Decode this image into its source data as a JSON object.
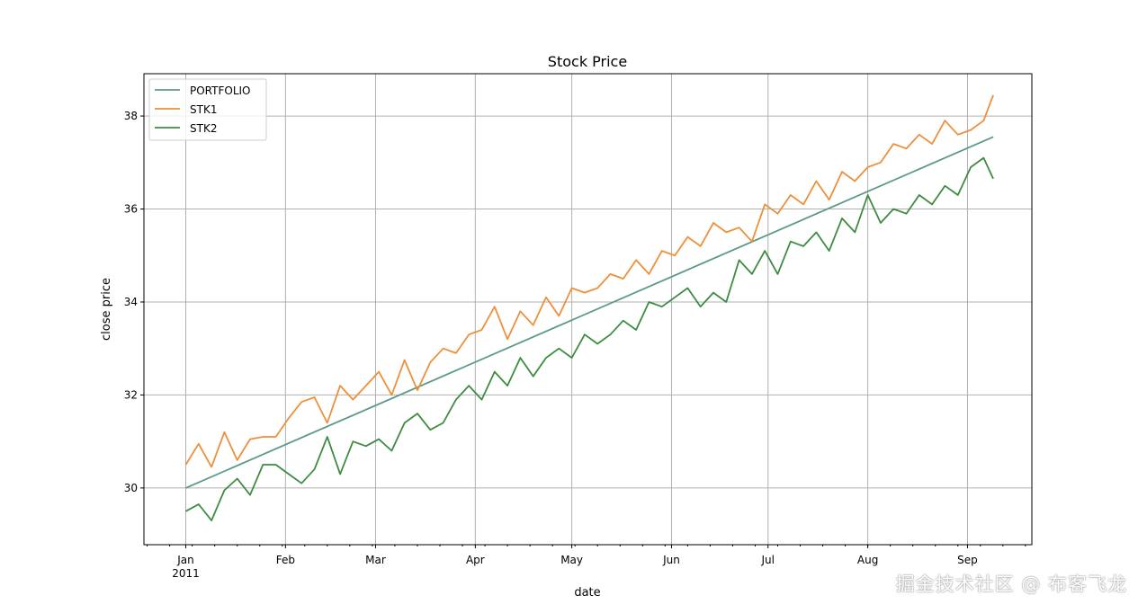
{
  "chart_data": {
    "type": "line",
    "title": "Stock Price",
    "xlabel": "date",
    "ylabel": "close price",
    "xlim": [
      "2010-12-19",
      "2011-09-21"
    ],
    "ylim": [
      28.78,
      38.91
    ],
    "grid": true,
    "legend_position": "top-left",
    "x_ticks": [
      {
        "date": "2011-01-01",
        "label": "Jan",
        "sublabel": "2011"
      },
      {
        "date": "2011-02-01",
        "label": "Feb"
      },
      {
        "date": "2011-03-01",
        "label": "Mar"
      },
      {
        "date": "2011-04-01",
        "label": "Apr"
      },
      {
        "date": "2011-05-01",
        "label": "May"
      },
      {
        "date": "2011-06-01",
        "label": "Jun"
      },
      {
        "date": "2011-07-01",
        "label": "Jul"
      },
      {
        "date": "2011-08-01",
        "label": "Aug"
      },
      {
        "date": "2011-09-01",
        "label": "Sep"
      }
    ],
    "y_ticks": [
      30,
      32,
      34,
      36,
      38
    ],
    "x": [
      "2011-01-01",
      "2011-01-05",
      "2011-01-09",
      "2011-01-13",
      "2011-01-17",
      "2011-01-21",
      "2011-01-25",
      "2011-01-29",
      "2011-02-02",
      "2011-02-06",
      "2011-02-10",
      "2011-02-14",
      "2011-02-18",
      "2011-02-22",
      "2011-02-26",
      "2011-03-02",
      "2011-03-06",
      "2011-03-10",
      "2011-03-14",
      "2011-03-18",
      "2011-03-22",
      "2011-03-26",
      "2011-03-30",
      "2011-04-03",
      "2011-04-07",
      "2011-04-11",
      "2011-04-15",
      "2011-04-19",
      "2011-04-23",
      "2011-04-27",
      "2011-05-01",
      "2011-05-05",
      "2011-05-09",
      "2011-05-13",
      "2011-05-17",
      "2011-05-21",
      "2011-05-25",
      "2011-05-29",
      "2011-06-02",
      "2011-06-06",
      "2011-06-10",
      "2011-06-14",
      "2011-06-18",
      "2011-06-22",
      "2011-06-26",
      "2011-06-30",
      "2011-07-04",
      "2011-07-08",
      "2011-07-12",
      "2011-07-16",
      "2011-07-20",
      "2011-07-24",
      "2011-07-28",
      "2011-08-01",
      "2011-08-05",
      "2011-08-09",
      "2011-08-13",
      "2011-08-17",
      "2011-08-21",
      "2011-08-25",
      "2011-08-29",
      "2011-09-02",
      "2011-09-06",
      "2011-09-09"
    ],
    "series": [
      {
        "name": "PORTFOLIO",
        "color": "#5b9a8b",
        "x": [
          "2011-01-01",
          "2011-09-09"
        ],
        "values": [
          30.0,
          37.55
        ]
      },
      {
        "name": "STK1",
        "color": "#ee8f3a",
        "values": [
          30.5,
          30.95,
          30.45,
          31.2,
          30.6,
          31.05,
          31.1,
          31.1,
          31.5,
          31.85,
          31.95,
          31.4,
          32.2,
          31.9,
          32.2,
          32.5,
          32.0,
          32.75,
          32.1,
          32.7,
          33.0,
          32.9,
          33.3,
          33.4,
          33.9,
          33.2,
          33.8,
          33.5,
          34.1,
          33.7,
          34.3,
          34.2,
          34.3,
          34.6,
          34.5,
          34.9,
          34.6,
          35.1,
          35.0,
          35.4,
          35.2,
          35.7,
          35.5,
          35.6,
          35.3,
          36.1,
          35.9,
          36.3,
          36.1,
          36.6,
          36.2,
          36.8,
          36.6,
          36.9,
          37.0,
          37.4,
          37.3,
          37.6,
          37.4,
          37.9,
          37.6,
          37.7,
          37.9,
          38.45
        ]
      },
      {
        "name": "STK2",
        "color": "#3d8c40",
        "values": [
          29.5,
          29.65,
          29.3,
          29.95,
          30.2,
          29.85,
          30.5,
          30.5,
          30.3,
          30.1,
          30.4,
          31.1,
          30.3,
          31.0,
          30.9,
          31.05,
          30.8,
          31.4,
          31.6,
          31.25,
          31.4,
          31.9,
          32.2,
          31.9,
          32.5,
          32.2,
          32.8,
          32.4,
          32.8,
          33.0,
          32.8,
          33.3,
          33.1,
          33.3,
          33.6,
          33.4,
          34.0,
          33.9,
          34.1,
          34.3,
          33.9,
          34.2,
          34.0,
          34.9,
          34.6,
          35.1,
          34.6,
          35.3,
          35.2,
          35.5,
          35.1,
          35.8,
          35.5,
          36.3,
          35.7,
          36.0,
          35.9,
          36.3,
          36.1,
          36.5,
          36.3,
          36.9,
          37.1,
          36.65
        ]
      }
    ]
  },
  "watermark": "掘金技术社区 @ 布客飞龙"
}
